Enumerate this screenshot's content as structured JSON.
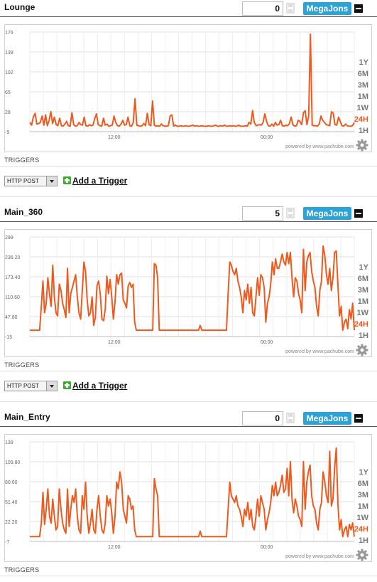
{
  "feeds": [
    {
      "title": "Lounge",
      "value": "0",
      "unit": "MegaJons",
      "ranges": [
        "1Y",
        "6M",
        "3M",
        "1M",
        "1W",
        "24H",
        "1H"
      ],
      "active_range": "24H",
      "powered_by": "powered by www.pachube.com",
      "triggers_label": "TRIGGERS",
      "trigger_select": "HTTP POST",
      "add_trigger": "Add a Trigger",
      "chart_data": {
        "type": "line",
        "yticks": [
          "176",
          "139",
          "102",
          "65",
          "28",
          "-9"
        ],
        "ylim": [
          -9,
          176
        ],
        "xticks": [
          {
            "label": "12:00",
            "t": 0.26
          },
          {
            "label": "00:00",
            "t": 0.73
          }
        ],
        "line_color": "#ee5a1e",
        "grid": true,
        "values": [
          8,
          3,
          18,
          25,
          5,
          6,
          8,
          20,
          3,
          22,
          2,
          12,
          28,
          6,
          18,
          4,
          2,
          16,
          2,
          1,
          5,
          10,
          2,
          1,
          26,
          4,
          1,
          2,
          8,
          4,
          3,
          18,
          2,
          1,
          4,
          2,
          3,
          15,
          24,
          4,
          2,
          1,
          16,
          3,
          5,
          1,
          2,
          3,
          20,
          8,
          2,
          1,
          5,
          12,
          3,
          4,
          18,
          2,
          1,
          8,
          52,
          3,
          2,
          1,
          2,
          6,
          2,
          25,
          4,
          2,
          48,
          3,
          1,
          2,
          1,
          5,
          2,
          1,
          1,
          2,
          20,
          22,
          1,
          3,
          1,
          1,
          2,
          1,
          1,
          2,
          1,
          1,
          2,
          3,
          1,
          2,
          1,
          1,
          2,
          1,
          1,
          1,
          2,
          1,
          1,
          2,
          3,
          1,
          1,
          2,
          1,
          3,
          1,
          1,
          2,
          1,
          2,
          1,
          1,
          3,
          1,
          1,
          1,
          2,
          1,
          8,
          5,
          30,
          8,
          2,
          3,
          4,
          3,
          8,
          24,
          10,
          2,
          1,
          5,
          1,
          8,
          3,
          4,
          12,
          2,
          1,
          3,
          2,
          6,
          18,
          4,
          1,
          2,
          12,
          10,
          4,
          26,
          30,
          4,
          20,
          172,
          3,
          2,
          2,
          1,
          5,
          20,
          12,
          8,
          4,
          3,
          2,
          28,
          25,
          4,
          3,
          18,
          10,
          2,
          1,
          5,
          2,
          1,
          1,
          2,
          8
        ]
      }
    },
    {
      "title": "Main_360",
      "value": "5",
      "unit": "MegaJons",
      "ranges": [
        "1Y",
        "6M",
        "3M",
        "1M",
        "1W",
        "24H",
        "1H"
      ],
      "active_range": "24H",
      "powered_by": "powered by www.pachube.com",
      "triggers_label": "TRIGGERS",
      "trigger_select": "HTTP POST",
      "add_trigger": "Add a Trigger",
      "chart_data": {
        "type": "line",
        "yticks": [
          "299",
          "236.20",
          "173.40",
          "110.60",
          "47.80",
          "-15"
        ],
        "ylim": [
          -15,
          299
        ],
        "xticks": [
          {
            "label": "12:00",
            "t": 0.26
          },
          {
            "label": "00:00",
            "t": 0.73
          }
        ],
        "line_color": "#ee5a1e",
        "grid": true,
        "values": [
          5,
          5,
          5,
          5,
          5,
          5,
          5,
          80,
          160,
          60,
          90,
          170,
          120,
          80,
          210,
          110,
          60,
          50,
          150,
          130,
          90,
          70,
          45,
          200,
          60,
          120,
          140,
          160,
          180,
          110,
          60,
          40,
          130,
          220,
          190,
          100,
          50,
          60,
          110,
          20,
          45,
          145,
          160,
          120,
          40,
          35,
          70,
          175,
          120,
          165,
          110,
          40,
          95,
          180,
          150,
          180,
          185,
          100,
          90,
          75,
          145,
          155,
          140,
          150,
          30,
          5,
          5,
          5,
          5,
          5,
          5,
          5,
          5,
          5,
          5,
          5,
          215,
          210,
          170,
          5,
          5,
          5,
          5,
          5,
          5,
          5,
          5,
          5,
          5,
          5,
          5,
          5,
          5,
          5,
          5,
          5,
          5,
          5,
          5,
          5,
          5,
          5,
          5,
          5,
          20,
          5,
          5,
          5,
          5,
          5,
          5,
          5,
          5,
          5,
          5,
          5,
          5,
          5,
          5,
          5,
          5,
          120,
          220,
          210,
          190,
          180,
          200,
          160,
          140,
          110,
          60,
          130,
          100,
          150,
          90,
          140,
          60,
          50,
          110,
          170,
          115,
          180,
          170,
          140,
          30,
          90,
          110,
          150,
          220,
          180,
          230,
          200,
          200,
          220,
          245,
          220,
          210,
          250,
          215,
          250,
          170,
          110,
          170,
          160,
          120,
          100,
          60,
          260,
          130,
          220,
          240,
          250,
          190,
          160,
          140,
          80,
          50,
          130,
          160,
          270,
          240,
          180,
          150,
          200,
          130,
          170,
          250,
          255,
          150,
          50,
          80,
          5,
          30,
          40,
          10,
          70,
          40,
          90,
          5
        ]
      }
    },
    {
      "title": "Main_Entry",
      "value": "0",
      "unit": "MegaJons",
      "ranges": [
        "1Y",
        "6M",
        "3M",
        "1M",
        "1W",
        "24H",
        "1H"
      ],
      "active_range": "24H",
      "powered_by": "powered by www.pachube.com",
      "triggers_label": "TRIGGERS",
      "chart_data": {
        "type": "line",
        "yticks": [
          "139",
          "109.80",
          "80.60",
          "51.40",
          "22.20",
          "-7"
        ],
        "ylim": [
          -7,
          139
        ],
        "xticks": [
          {
            "label": "12:00",
            "t": 0.26
          },
          {
            "label": "00:00",
            "t": 0.73
          }
        ],
        "line_color": "#ee5a1e",
        "grid": true,
        "values": [
          0,
          0,
          0,
          0,
          0,
          0,
          0,
          20,
          65,
          18,
          40,
          70,
          30,
          20,
          55,
          30,
          10,
          15,
          70,
          40,
          20,
          10,
          5,
          70,
          15,
          40,
          60,
          50,
          70,
          30,
          10,
          5,
          60,
          40,
          80,
          30,
          5,
          20,
          40,
          10,
          5,
          40,
          60,
          30,
          10,
          5,
          20,
          60,
          45,
          55,
          35,
          5,
          30,
          80,
          70,
          95,
          80,
          40,
          30,
          20,
          60,
          55,
          40,
          45,
          10,
          0,
          0,
          0,
          0,
          0,
          0,
          0,
          0,
          0,
          0,
          0,
          85,
          70,
          60,
          0,
          0,
          0,
          0,
          0,
          0,
          0,
          0,
          0,
          0,
          0,
          0,
          0,
          0,
          0,
          0,
          0,
          0,
          0,
          0,
          0,
          0,
          0,
          0,
          0,
          8,
          0,
          0,
          0,
          0,
          0,
          0,
          0,
          0,
          0,
          0,
          0,
          0,
          0,
          0,
          0,
          0,
          40,
          80,
          60,
          55,
          50,
          60,
          45,
          40,
          30,
          15,
          40,
          30,
          50,
          25,
          40,
          15,
          10,
          30,
          55,
          30,
          60,
          50,
          40,
          10,
          25,
          35,
          50,
          75,
          60,
          80,
          60,
          65,
          75,
          90,
          65,
          70,
          100,
          60,
          110,
          55,
          35,
          55,
          45,
          30,
          25,
          15,
          110,
          40,
          80,
          95,
          105,
          60,
          45,
          40,
          20,
          10,
          40,
          50,
          95,
          80,
          60,
          50,
          125,
          45,
          55,
          100,
          130,
          50,
          10,
          25,
          0,
          10,
          15,
          0,
          18,
          10,
          20,
          0
        ]
      }
    }
  ]
}
